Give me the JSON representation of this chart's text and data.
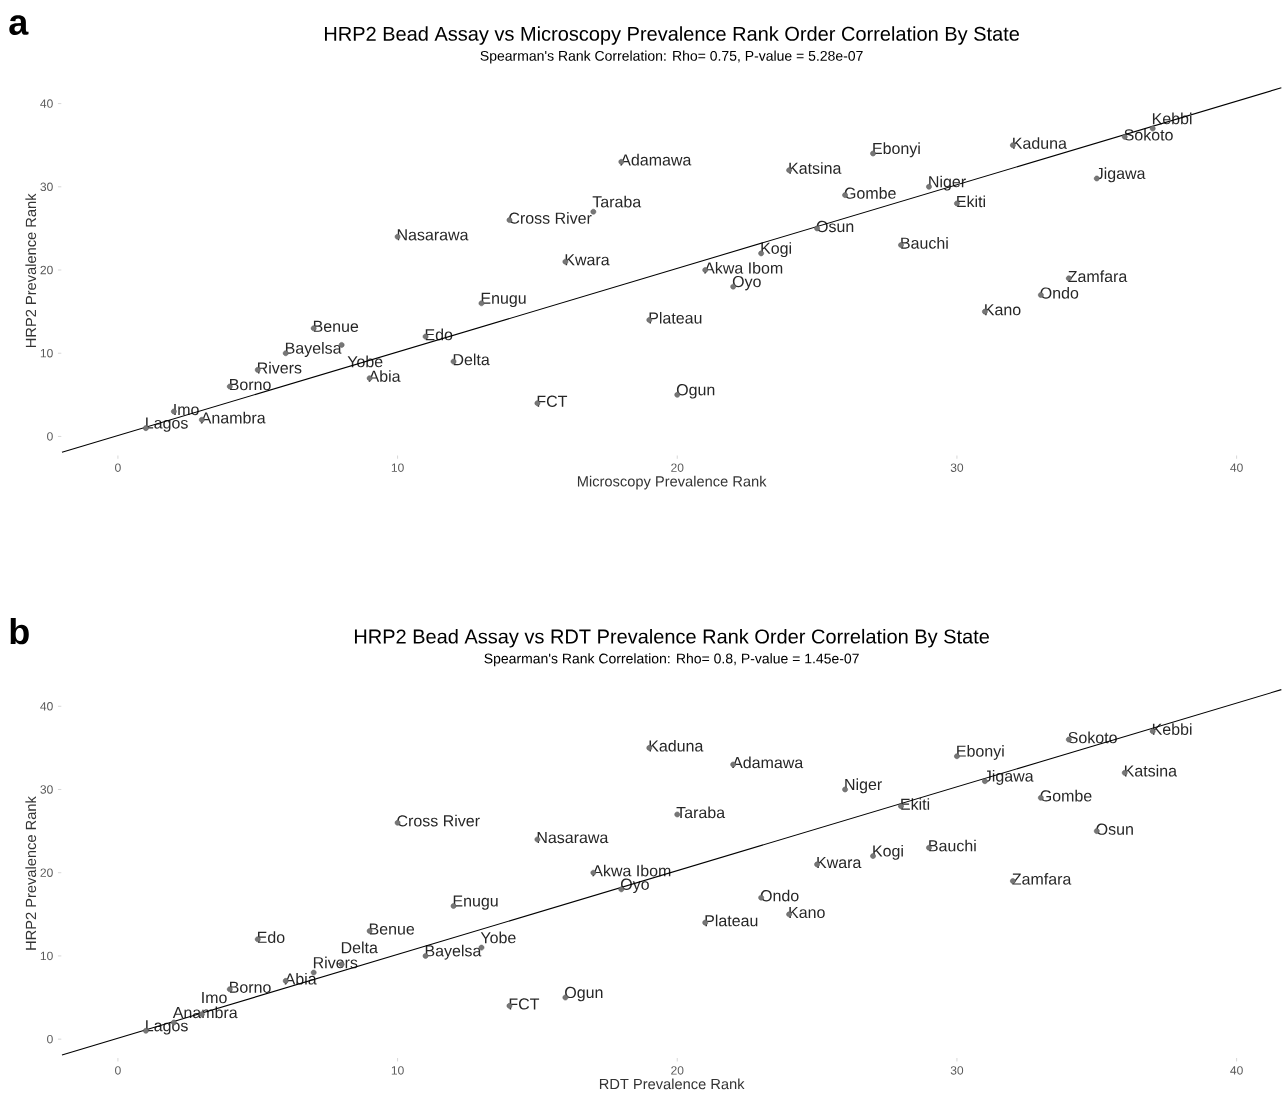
{
  "chart_data": [
    {
      "type": "scatter",
      "title": "HRP2 Bead Assay vs Microscopy Prevalence Rank Order Correlation By State",
      "subtitle": "Spearman's Rank Correlation: Rho= 0.75, P-value = 5.28e-07",
      "xlabel": "Microscopy Prevalence Rank",
      "ylabel": "HRP2 Prevalence Rank",
      "annotations": [
        "a"
      ],
      "xlim": [
        -2,
        41.6
      ],
      "ylim": [
        -2.2,
        42
      ],
      "xticks": [
        0,
        10,
        20,
        30,
        40
      ],
      "yticks": [
        0,
        10,
        20,
        30,
        40
      ],
      "series": [
        {
          "marker": "circle",
          "color": "#555555",
          "x": [
            1,
            2,
            3,
            4,
            5,
            6,
            7,
            8,
            9,
            10,
            11,
            12,
            13,
            14,
            15,
            16,
            17,
            18,
            19,
            20,
            21,
            22,
            23,
            24,
            25,
            26,
            27,
            28,
            29,
            30,
            31,
            32,
            33,
            34,
            35,
            36,
            37
          ],
          "values": [
            1,
            3,
            2,
            6,
            8,
            10,
            13,
            11,
            7,
            24,
            12,
            9,
            16,
            26,
            4,
            21,
            27,
            33,
            14,
            5,
            20,
            18,
            22,
            32,
            25,
            29,
            34,
            23,
            30,
            28,
            15,
            35,
            17,
            19,
            31,
            36,
            37
          ],
          "value_labels": [
            "Lagos",
            "Imo",
            "Anambra",
            "Borno",
            "Rivers",
            "Bayelsa",
            "Benue",
            "Yobe",
            "Abia",
            "Nasarawa",
            "Edo",
            "Delta",
            "Enugu",
            "Cross River",
            "FCT",
            "Kwara",
            "Taraba",
            "Adamawa",
            "Plateau",
            "Ogun",
            "Akwa Ibom",
            "Oyo",
            "Kogi",
            "Katsina",
            "Osun",
            "Gombe",
            "Ebonyi",
            "Bauchi",
            "Niger",
            "Ekiti",
            "Kano",
            "Kaduna",
            "Ondo",
            "Zamfara",
            "Jigawa",
            "Sokoto",
            "Kebbi"
          ]
        },
        {
          "type": "line",
          "marker": "none",
          "color": "#000000",
          "x": [
            -2,
            41.6
          ],
          "values": [
            -1.9,
            41.9
          ]
        }
      ]
    },
    {
      "type": "scatter",
      "title": "HRP2 Bead Assay vs RDT Prevalence Rank Order Correlation By State",
      "subtitle": "Spearman's Rank Correlation: Rho= 0.8, P-value = 1.45e-07",
      "xlabel": "RDT Prevalence Rank",
      "ylabel": "HRP2 Prevalence Rank",
      "annotations": [
        "b"
      ],
      "xlim": [
        -2,
        41.6
      ],
      "ylim": [
        -2.2,
        42
      ],
      "xticks": [
        0,
        10,
        20,
        30,
        40
      ],
      "yticks": [
        0,
        10,
        20,
        30,
        40
      ],
      "series": [
        {
          "marker": "circle",
          "color": "#555555",
          "x": [
            1,
            2,
            3,
            4,
            5,
            6,
            7,
            8,
            9,
            10,
            11,
            12,
            13,
            14,
            15,
            16,
            17,
            18,
            19,
            20,
            21,
            22,
            23,
            24,
            25,
            26,
            27,
            28,
            29,
            30,
            31,
            32,
            33,
            34,
            35,
            36,
            37
          ],
          "values": [
            1,
            2,
            3,
            6,
            12,
            7,
            8,
            9,
            13,
            26,
            10,
            16,
            11,
            4,
            24,
            5,
            20,
            18,
            35,
            27,
            14,
            33,
            17,
            15,
            21,
            30,
            22,
            28,
            23,
            34,
            31,
            19,
            29,
            36,
            25,
            32,
            37
          ],
          "value_labels": [
            "Lagos",
            "Anambra",
            "Imo",
            "Borno",
            "Edo",
            "Abia",
            "Rivers",
            "Delta",
            "Benue",
            "Cross River",
            "Bayelsa",
            "Enugu",
            "Yobe",
            "FCT",
            "Nasarawa",
            "Ogun",
            "Akwa Ibom",
            "Oyo",
            "Kaduna",
            "Taraba",
            "Plateau",
            "Adamawa",
            "Ondo",
            "Kano",
            "Kwara",
            "Niger",
            "Kogi",
            "Ekiti",
            "Bauchi",
            "Ebonyi",
            "Jigawa",
            "Zamfara",
            "Gombe",
            "Sokoto",
            "Osun",
            "Katsina",
            "Kebbi"
          ]
        },
        {
          "type": "line",
          "marker": "none",
          "color": "#000000",
          "x": [
            -2,
            41.6
          ],
          "values": [
            -1.9,
            42
          ]
        }
      ]
    }
  ]
}
